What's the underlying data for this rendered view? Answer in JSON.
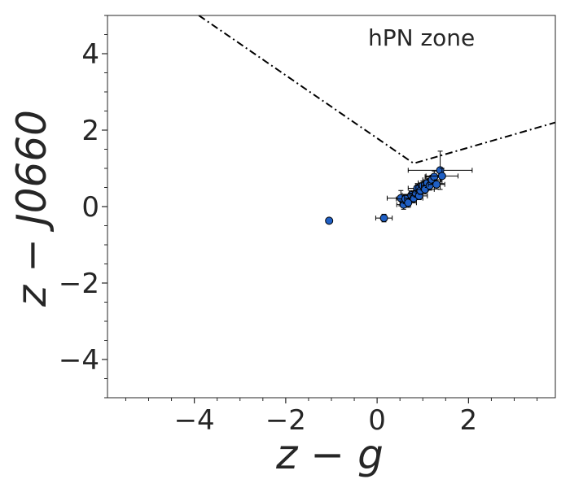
{
  "chart_data": {
    "type": "scatter",
    "xlabel": "z − g",
    "ylabel": "z − J0660",
    "xlim": [
      -5.9,
      3.9
    ],
    "ylim": [
      -5.0,
      5.0
    ],
    "x_ticks": [
      -4,
      -2,
      0,
      2
    ],
    "x_tick_labels": [
      "−4",
      "−2",
      "0",
      "2"
    ],
    "y_ticks": [
      -4,
      -2,
      0,
      2,
      4
    ],
    "y_tick_labels": [
      "−4",
      "−2",
      "0",
      "2",
      "4"
    ],
    "grid": false,
    "annotation": "hPN zone",
    "zone_boundary": [
      [
        -3.9,
        5.0
      ],
      [
        0.8,
        1.13
      ],
      [
        3.9,
        2.2
      ]
    ],
    "point_color": "#1f5fc4",
    "points": [
      {
        "x": -1.05,
        "y": -0.37,
        "xerr": 0.02,
        "yerr": 0.02
      },
      {
        "x": 0.15,
        "y": -0.3,
        "xerr": 0.18,
        "yerr": 0.1
      },
      {
        "x": 0.52,
        "y": 0.22,
        "xerr": 0.3,
        "yerr": 0.2
      },
      {
        "x": 0.58,
        "y": 0.05,
        "xerr": 0.15,
        "yerr": 0.12
      },
      {
        "x": 0.62,
        "y": 0.2,
        "xerr": 0.2,
        "yerr": 0.12
      },
      {
        "x": 0.68,
        "y": 0.1,
        "xerr": 0.18,
        "yerr": 0.12
      },
      {
        "x": 0.75,
        "y": 0.3,
        "xerr": 0.2,
        "yerr": 0.12
      },
      {
        "x": 0.8,
        "y": 0.22,
        "xerr": 0.2,
        "yerr": 0.12
      },
      {
        "x": 0.85,
        "y": 0.35,
        "xerr": 0.15,
        "yerr": 0.1
      },
      {
        "x": 0.88,
        "y": 0.48,
        "xerr": 0.2,
        "yerr": 0.12
      },
      {
        "x": 0.92,
        "y": 0.28,
        "xerr": 0.18,
        "yerr": 0.1
      },
      {
        "x": 0.95,
        "y": 0.42,
        "xerr": 0.15,
        "yerr": 0.1
      },
      {
        "x": 1.0,
        "y": 0.55,
        "xerr": 0.15,
        "yerr": 0.12
      },
      {
        "x": 1.05,
        "y": 0.45,
        "xerr": 0.2,
        "yerr": 0.12
      },
      {
        "x": 1.1,
        "y": 0.62,
        "xerr": 0.2,
        "yerr": 0.12
      },
      {
        "x": 1.15,
        "y": 0.55,
        "xerr": 0.18,
        "yerr": 0.12
      },
      {
        "x": 1.2,
        "y": 0.7,
        "xerr": 0.2,
        "yerr": 0.12
      },
      {
        "x": 1.25,
        "y": 0.78,
        "xerr": 0.2,
        "yerr": 0.15
      },
      {
        "x": 1.3,
        "y": 0.58,
        "xerr": 0.18,
        "yerr": 0.12
      },
      {
        "x": 1.38,
        "y": 0.95,
        "xerr": 0.7,
        "yerr": 0.5
      },
      {
        "x": 1.42,
        "y": 0.8,
        "xerr": 0.35,
        "yerr": 0.2
      }
    ]
  }
}
